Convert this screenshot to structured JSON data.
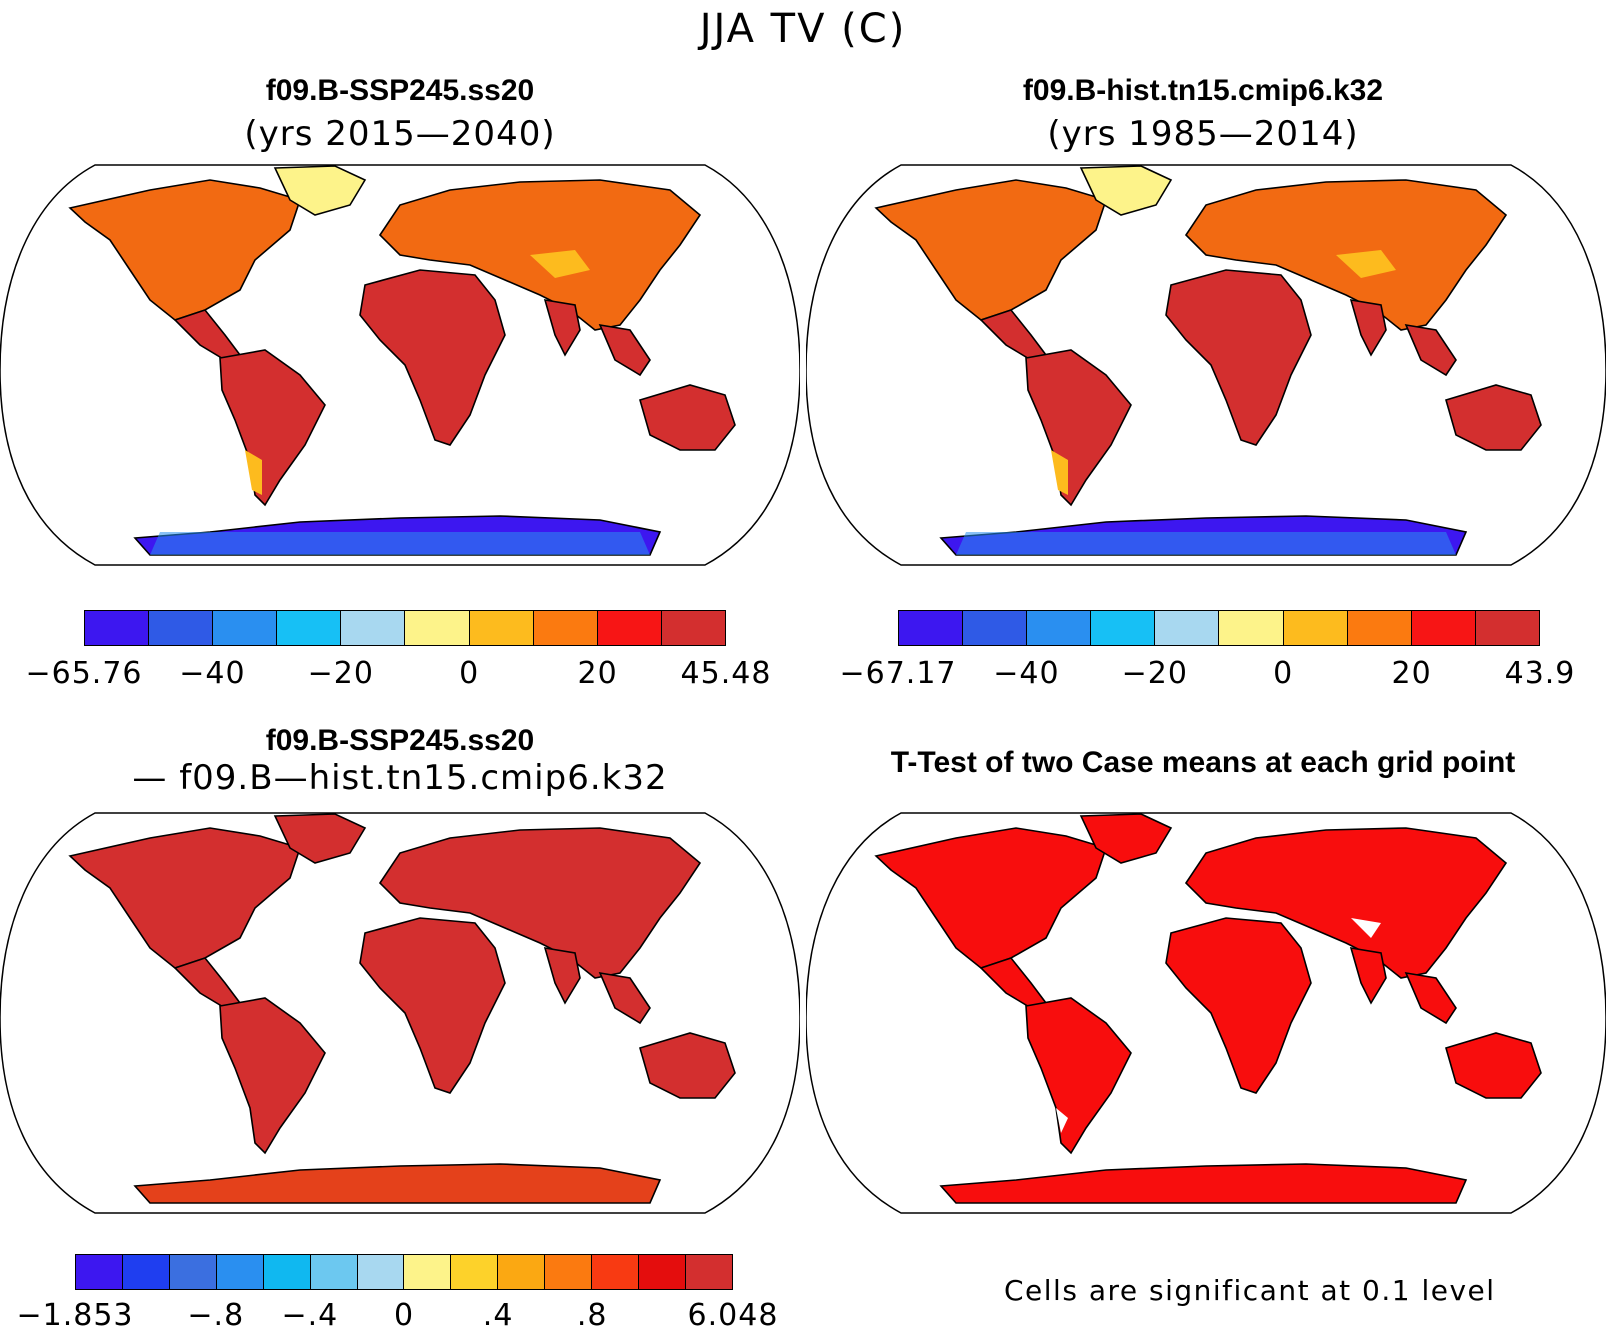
{
  "title": "JJA TV (C)",
  "panels": [
    {
      "title": "f09.B-SSP245.ss20",
      "subtitle": "(yrs 2015—2040)",
      "colorbar": {
        "colors": [
          "#3d17f0",
          "#2f5ae6",
          "#2a8ff0",
          "#17c0f5",
          "#a8d8f0",
          "#fdf38a",
          "#fdbb1e",
          "#fb7a10",
          "#f71515",
          "#d32f2f"
        ],
        "ticks": [
          "−65.76",
          "−40",
          "−20",
          "0",
          "20",
          "45.48"
        ]
      }
    },
    {
      "title": "f09.B-hist.tn15.cmip6.k32",
      "subtitle": "(yrs 1985—2014)",
      "colorbar": {
        "colors": [
          "#3d17f0",
          "#2f5ae6",
          "#2a8ff0",
          "#17c0f5",
          "#a8d8f0",
          "#fdf38a",
          "#fdbb1e",
          "#fb7a10",
          "#f71515",
          "#d32f2f"
        ],
        "ticks": [
          "−67.17",
          "−40",
          "−20",
          "0",
          "20",
          "43.9"
        ]
      }
    },
    {
      "title": "f09.B-SSP245.ss20",
      "subtitle": "— f09.B—hist.tn15.cmip6.k32",
      "colorbar": {
        "colors": [
          "#3d17f0",
          "#1f3ef0",
          "#3b6fe0",
          "#2a8ff0",
          "#10b8f0",
          "#6cc8f0",
          "#a8d8f0",
          "#fdf38a",
          "#fdd22a",
          "#fba812",
          "#fb7a10",
          "#f83a12",
          "#e40d0d",
          "#d32f2f"
        ],
        "ticks": [
          "−1.853",
          "−.8",
          "−.4",
          "0",
          ".4",
          ".8",
          "6.048"
        ]
      }
    },
    {
      "title": "T-Test of two Case means at each grid point",
      "subtitle": "",
      "note": "Cells are significant at 0.1 level"
    }
  ]
}
